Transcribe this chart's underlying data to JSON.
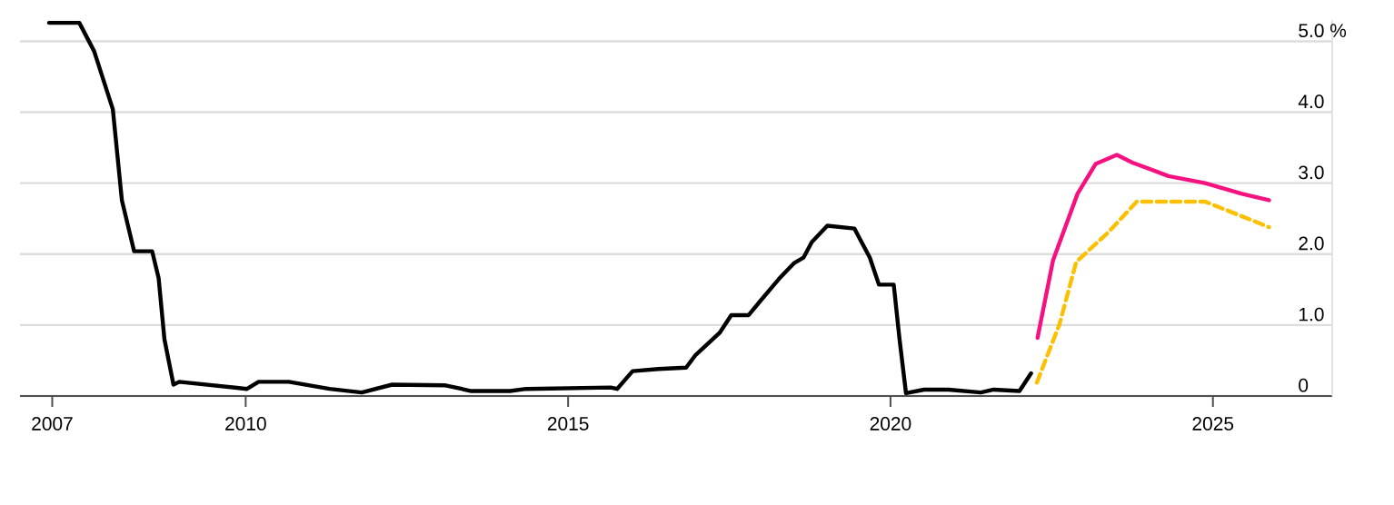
{
  "chart_data": {
    "type": "line",
    "xlim": [
      2006.5,
      2026.85
    ],
    "ylim": [
      0,
      5.3
    ],
    "xticks": [
      2007,
      2010,
      2015,
      2020,
      2025
    ],
    "yticks": [
      0,
      {
        "value": 1,
        "label": "1.0"
      },
      {
        "value": 2,
        "label": "2.0"
      },
      {
        "value": 3,
        "label": "3.0"
      },
      {
        "value": 4,
        "label": "4.0"
      },
      {
        "value": 5,
        "label": "5.0 %"
      }
    ],
    "grid": "y",
    "series": [
      {
        "color": "#000000",
        "line_style": "solid",
        "x": [
          2006.95,
          2007.42,
          2007.65,
          2007.94,
          2008.08,
          2008.27,
          2008.55,
          2008.65,
          2008.74,
          2008.88,
          2008.97,
          2010.02,
          2010.2,
          2010.67,
          2011.3,
          2011.8,
          2012.27,
          2013.1,
          2013.5,
          2014.1,
          2014.35,
          2015.66,
          2015.76,
          2016.0,
          2016.4,
          2016.83,
          2016.97,
          2017.35,
          2017.53,
          2017.8,
          2018.0,
          2018.27,
          2018.5,
          2018.65,
          2018.78,
          2019.02,
          2019.44,
          2019.68,
          2019.82,
          2020.05,
          2020.14,
          2020.24,
          2020.52,
          2020.9,
          2021.4,
          2021.6,
          2022.0,
          2022.18
        ],
        "values": [
          5.26,
          5.26,
          4.86,
          4.04,
          2.76,
          2.04,
          2.04,
          1.66,
          0.8,
          0.16,
          0.2,
          0.1,
          0.2,
          0.2,
          0.1,
          0.05,
          0.16,
          0.15,
          0.07,
          0.07,
          0.1,
          0.12,
          0.1,
          0.35,
          0.38,
          0.4,
          0.57,
          0.89,
          1.14,
          1.14,
          1.36,
          1.65,
          1.87,
          1.95,
          2.17,
          2.4,
          2.36,
          1.95,
          1.57,
          1.57,
          0.8,
          0.04,
          0.09,
          0.09,
          0.05,
          0.09,
          0.07,
          0.32
        ]
      },
      {
        "color": "#f5117f",
        "line_style": "solid",
        "x": [
          2022.28,
          2022.52,
          2022.9,
          2023.18,
          2023.51,
          2023.75,
          2024.31,
          2024.88,
          2025.45,
          2025.87
        ],
        "values": [
          0.82,
          1.91,
          2.85,
          3.27,
          3.4,
          3.29,
          3.1,
          3.0,
          2.85,
          2.76
        ]
      },
      {
        "color": "#fcc000",
        "line_style": "dashed",
        "x": [
          2022.27,
          2022.62,
          2022.88,
          2023.37,
          2023.82,
          2024.88,
          2025.87
        ],
        "values": [
          0.19,
          1.01,
          1.89,
          2.3,
          2.74,
          2.74,
          2.38
        ]
      }
    ]
  }
}
